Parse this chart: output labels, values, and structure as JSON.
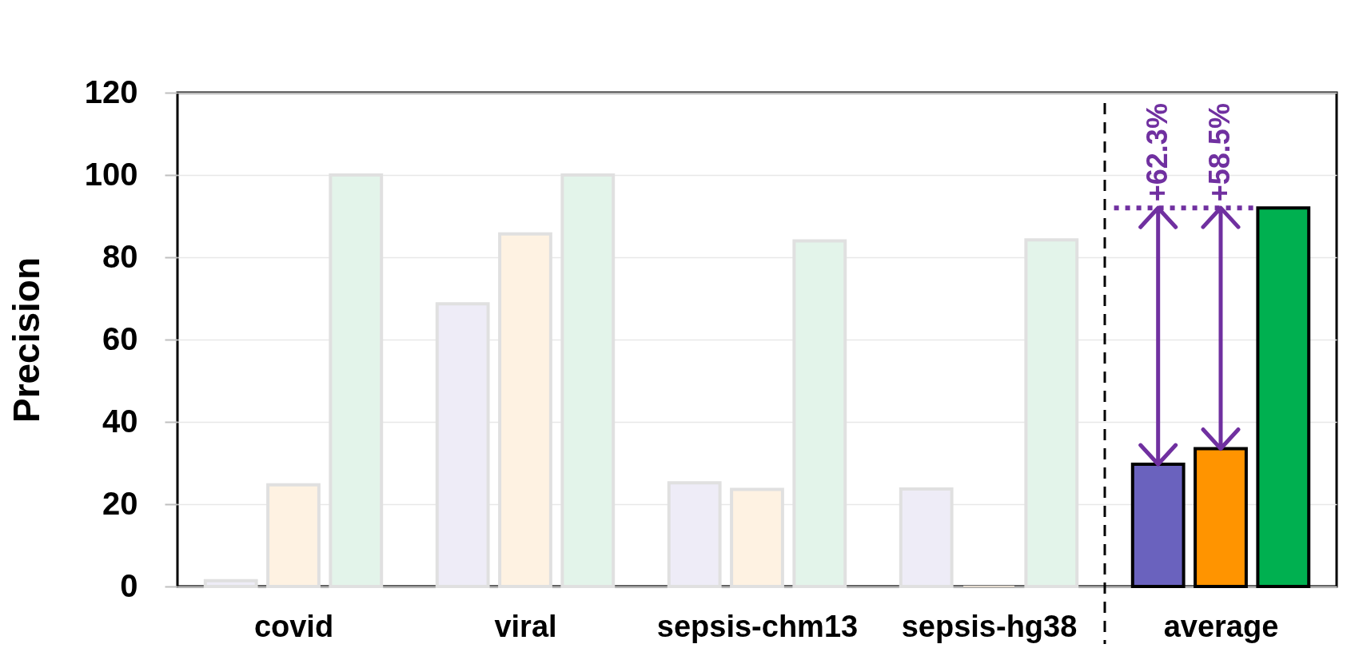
{
  "chart_data": {
    "type": "bar",
    "ylabel": "Precision",
    "categories": [
      "covid",
      "viral",
      "sepsis-chm13",
      "sepsis-hg38",
      "average"
    ],
    "series": [
      {
        "colors": [
          "#eeecf7",
          "#eeecf7",
          "#eeecf7",
          "#eeecf7",
          "#6a62be"
        ],
        "values": [
          1.4,
          68.7,
          25.2,
          23.7,
          29.7
        ]
      },
      {
        "colors": [
          "#fef2e2",
          "#fef2e2",
          "#fef2e2",
          "#fef2e2",
          "#ff9400"
        ],
        "values": [
          24.7,
          85.7,
          23.6,
          0,
          33.5
        ]
      },
      {
        "colors": [
          "#e3f4ea",
          "#e3f4ea",
          "#e3f4ea",
          "#e3f4ea",
          "#00b050"
        ],
        "values": [
          100,
          100,
          84,
          84.2,
          92
        ]
      }
    ],
    "ylim": [
      0,
      120
    ],
    "yticks": [
      0,
      20,
      40,
      60,
      80,
      100,
      120
    ],
    "grid": "y",
    "ref_lines": [
      {
        "axis": "x",
        "value": "average",
        "color": "#000000",
        "line_style": "dashed"
      },
      {
        "axis": "y",
        "value": 92,
        "color": "#7030a0",
        "line_style": "dotted"
      }
    ],
    "annotations": [
      "+62.3%",
      "+58.5%"
    ]
  }
}
